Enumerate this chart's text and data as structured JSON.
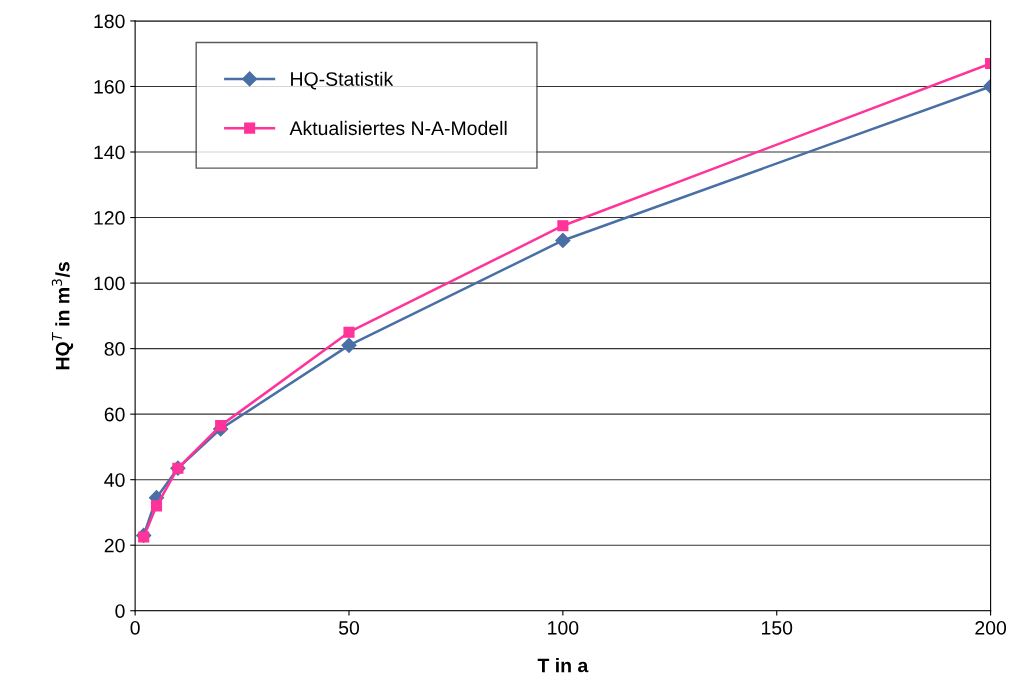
{
  "chart_data": {
    "type": "line",
    "xlabel": "T in a",
    "ylabel": "HQ$^{T}$ in m$^{3}$/s",
    "x": [
      2,
      5,
      10,
      20,
      50,
      100,
      200
    ],
    "series": [
      {
        "name": "HQ-Statistik",
        "color": "#4a6fa5",
        "marker": "diamond",
        "values": [
          23,
          34.5,
          43.5,
          55.5,
          81,
          113,
          160
        ]
      },
      {
        "name": "Aktualisiertes N-A-Modell",
        "color": "#ff3399",
        "marker": "square",
        "values": [
          22.5,
          32,
          43.5,
          56.5,
          85,
          117.5,
          167
        ]
      }
    ],
    "xlim": [
      0,
      200
    ],
    "xticks": [
      0,
      50,
      100,
      150,
      200
    ],
    "ylim": [
      0,
      180
    ],
    "yticks": [
      0,
      20,
      40,
      60,
      80,
      100,
      120,
      140,
      160,
      180
    ],
    "grid": "y",
    "legend": "top left",
    "line_style": "solid"
  }
}
